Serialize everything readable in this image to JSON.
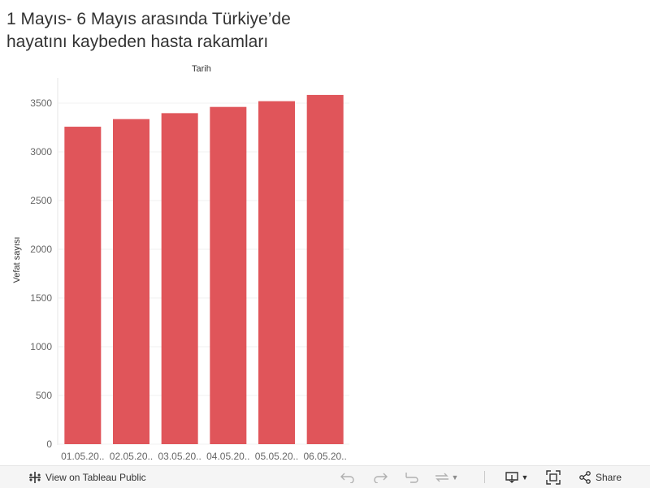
{
  "title": "1 Mayıs- 6 Mayıs arasında Türkiye’de hayatını kaybeden hasta rakamları",
  "chart_data": {
    "type": "bar",
    "title": "1 Mayıs- 6 Mayıs arasında Türkiye’de hayatını kaybeden hasta rakamları",
    "xlabel": "Tarih",
    "ylabel": "Vefat sayısı",
    "categories": [
      "01.05.20..",
      "02.05.20..",
      "03.05.20..",
      "04.05.20..",
      "05.05.20..",
      "06.05.20.."
    ],
    "values": [
      3258,
      3336,
      3397,
      3461,
      3520,
      3584
    ],
    "ylim": [
      0,
      3750
    ],
    "yticks": [
      0,
      500,
      1000,
      1500,
      2000,
      2500,
      3000,
      3500
    ],
    "bar_color": "#e0555a",
    "grid": true
  },
  "toolbar": {
    "view_label": "View on Tableau Public",
    "share_label": "Share",
    "icons": [
      "tableau-logo-icon",
      "undo-icon",
      "redo-icon",
      "revert-icon",
      "refresh-icon",
      "download-icon",
      "fullscreen-icon",
      "share-icon"
    ]
  }
}
